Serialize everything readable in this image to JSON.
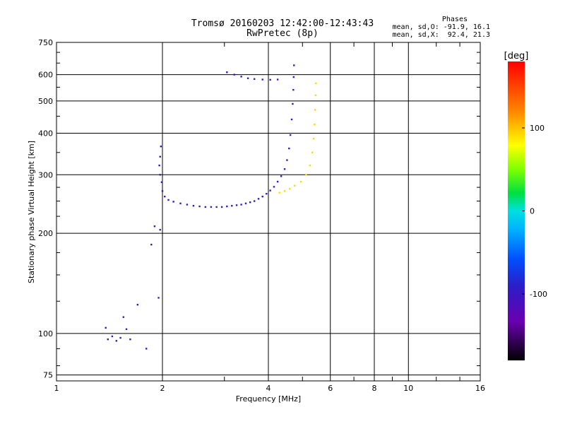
{
  "header": {
    "title_line1": "Tromsø 20160203 12:42:00-12:43:43",
    "title_line2": "RwPretec (8p)",
    "phases_label": "Phases",
    "phases_o": "mean, sd,O: -91.9, 16.1",
    "phases_x": "mean, sd,X:  92.4, 21.3"
  },
  "chart_data": {
    "type": "scatter",
    "title": "Tromsø 20160203 12:42:00-12:43:43",
    "subtitle": "RwPretec (8p)",
    "xlabel": "Frequency [MHz]",
    "ylabel": "Stationary phase Virtual Height [km]",
    "x_scale": "log",
    "y_scale": "log",
    "xlim": [
      1,
      16
    ],
    "ylim": [
      72,
      750
    ],
    "x_ticks": [
      1,
      2,
      4,
      6,
      8,
      10,
      16
    ],
    "y_ticks": [
      75,
      100,
      200,
      300,
      400,
      500,
      600,
      750
    ],
    "grid": true,
    "colorbar": {
      "label": "[deg]",
      "range": [
        -180,
        180
      ],
      "ticks": [
        100,
        0,
        -100
      ]
    },
    "o_trace_phase_deg": -92,
    "x_trace_phase_deg": 92,
    "o_trace": [
      {
        "f": 1.98,
        "h": 365
      },
      {
        "f": 1.97,
        "h": 340
      },
      {
        "f": 1.96,
        "h": 320
      },
      {
        "f": 1.97,
        "h": 300
      },
      {
        "f": 1.99,
        "h": 285
      },
      {
        "f": 2.0,
        "h": 268
      },
      {
        "f": 2.03,
        "h": 258
      },
      {
        "f": 2.08,
        "h": 252
      },
      {
        "f": 2.15,
        "h": 249
      },
      {
        "f": 2.25,
        "h": 246
      },
      {
        "f": 2.35,
        "h": 244
      },
      {
        "f": 2.45,
        "h": 242
      },
      {
        "f": 2.55,
        "h": 241
      },
      {
        "f": 2.65,
        "h": 240
      },
      {
        "f": 2.75,
        "h": 240
      },
      {
        "f": 2.85,
        "h": 240
      },
      {
        "f": 2.95,
        "h": 240
      },
      {
        "f": 3.05,
        "h": 241
      },
      {
        "f": 3.15,
        "h": 242
      },
      {
        "f": 3.25,
        "h": 243
      },
      {
        "f": 3.35,
        "h": 244
      },
      {
        "f": 3.45,
        "h": 246
      },
      {
        "f": 3.55,
        "h": 248
      },
      {
        "f": 3.65,
        "h": 250
      },
      {
        "f": 3.75,
        "h": 254
      },
      {
        "f": 3.85,
        "h": 258
      },
      {
        "f": 3.95,
        "h": 263
      },
      {
        "f": 4.05,
        "h": 269
      },
      {
        "f": 4.15,
        "h": 276
      },
      {
        "f": 4.25,
        "h": 286
      },
      {
        "f": 4.35,
        "h": 297
      },
      {
        "f": 4.45,
        "h": 312
      },
      {
        "f": 4.52,
        "h": 332
      },
      {
        "f": 4.58,
        "h": 360
      },
      {
        "f": 4.62,
        "h": 395
      },
      {
        "f": 4.66,
        "h": 440
      },
      {
        "f": 4.69,
        "h": 490
      },
      {
        "f": 4.71,
        "h": 540
      },
      {
        "f": 4.72,
        "h": 590
      },
      {
        "f": 4.73,
        "h": 640
      }
    ],
    "o_upper_segment": [
      {
        "f": 3.05,
        "h": 610
      },
      {
        "f": 3.2,
        "h": 600
      },
      {
        "f": 3.35,
        "h": 592
      },
      {
        "f": 3.5,
        "h": 585
      },
      {
        "f": 3.65,
        "h": 582
      },
      {
        "f": 3.85,
        "h": 580
      },
      {
        "f": 4.05,
        "h": 579
      },
      {
        "f": 4.25,
        "h": 580
      }
    ],
    "x_trace": [
      {
        "f": 4.3,
        "h": 265
      },
      {
        "f": 4.45,
        "h": 268
      },
      {
        "f": 4.6,
        "h": 272
      },
      {
        "f": 4.75,
        "h": 278
      },
      {
        "f": 4.95,
        "h": 286
      },
      {
        "f": 5.12,
        "h": 300
      },
      {
        "f": 5.25,
        "h": 320
      },
      {
        "f": 5.33,
        "h": 350
      },
      {
        "f": 5.38,
        "h": 385
      },
      {
        "f": 5.41,
        "h": 425
      },
      {
        "f": 5.43,
        "h": 470
      },
      {
        "f": 5.45,
        "h": 520
      },
      {
        "f": 5.46,
        "h": 565
      }
    ],
    "e_region": [
      {
        "f": 1.38,
        "h": 104
      },
      {
        "f": 1.4,
        "h": 96
      },
      {
        "f": 1.44,
        "h": 98
      },
      {
        "f": 1.48,
        "h": 95
      },
      {
        "f": 1.52,
        "h": 97
      },
      {
        "f": 1.55,
        "h": 112
      },
      {
        "f": 1.58,
        "h": 103
      },
      {
        "f": 1.62,
        "h": 96
      },
      {
        "f": 1.7,
        "h": 122
      },
      {
        "f": 1.8,
        "h": 90
      },
      {
        "f": 1.86,
        "h": 185
      },
      {
        "f": 1.9,
        "h": 210
      },
      {
        "f": 1.95,
        "h": 128
      },
      {
        "f": 1.97,
        "h": 205
      }
    ]
  }
}
